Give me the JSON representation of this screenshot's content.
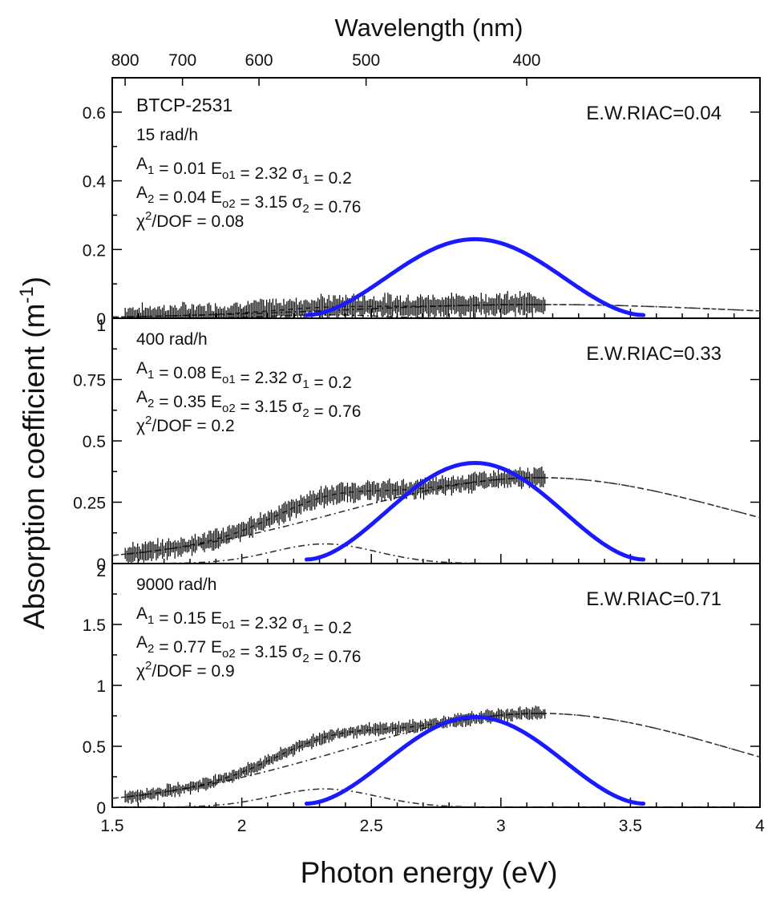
{
  "chart_data": {
    "type": "line",
    "xlabel": "Photon energy (eV)",
    "top_axis_label": "Wavelength (nm)",
    "ylabel": "Absorption coefficient (m-1)",
    "xlim": [
      1.5,
      4
    ],
    "x_ticks": [
      1.5,
      2,
      2.5,
      3,
      3.5,
      4
    ],
    "x_tick_labels": [
      "1.5",
      "2",
      "2.5",
      "3",
      "3.5",
      "4"
    ],
    "top_ticks_nm": [
      800,
      700,
      600,
      500,
      400
    ],
    "top_tick_labels": [
      "800",
      "700",
      "600",
      "500",
      "400"
    ],
    "panels": [
      {
        "sample": "BTCP-2531",
        "dose": "15 rad/h",
        "riac": "E.W.RIAC=0.04",
        "fit_line1": {
          "A_label": "A",
          "A_sub": "1",
          "A_val": " = 0.01  E",
          "E_sub": "o1",
          "E_val": " = 2.32  σ",
          "s_sub": "1",
          "s_val": " = 0.2"
        },
        "fit_line2": {
          "A_label": "A",
          "A_sub": "2",
          "A_val": " = 0.04  E",
          "E_sub": "o2",
          "E_val": " = 3.15  σ",
          "s_sub": "2",
          "s_val": " = 0.76"
        },
        "chi": {
          "sym": "χ",
          "sup": "2",
          "rest": "/DOF = 0.08"
        },
        "ylim": [
          0,
          0.7
        ],
        "y_ticks": [
          0,
          0.2,
          0.4,
          0.6
        ],
        "y_tick_labels": [
          "0",
          "0.2",
          "0.4",
          "0.6"
        ],
        "A1": 0.01,
        "A2": 0.04,
        "E1": 2.32,
        "E2": 3.15,
        "s1": 0.2,
        "s2": 0.76,
        "data_x_range": [
          1.55,
          3.17
        ],
        "data_error": 0.025,
        "spectrum_peak": 0.23
      },
      {
        "sample": "",
        "dose": "400 rad/h",
        "riac": "E.W.RIAC=0.33",
        "fit_line1": {
          "A_label": "A",
          "A_sub": "1",
          "A_val": " = 0.08  E",
          "E_sub": "o1",
          "E_val": " = 2.32  σ",
          "s_sub": "1",
          "s_val": " = 0.2"
        },
        "fit_line2": {
          "A_label": "A",
          "A_sub": "2",
          "A_val": " = 0.35  E",
          "E_sub": "o2",
          "E_val": " = 3.15  σ",
          "s_sub": "2",
          "s_val": " = 0.76"
        },
        "chi": {
          "sym": "χ",
          "sup": "2",
          "rest": "/DOF = 0.2"
        },
        "ylim": [
          0,
          1.0
        ],
        "y_ticks": [
          0,
          0.25,
          0.5,
          0.75,
          1
        ],
        "y_tick_labels": [
          "0",
          "0.25",
          "0.5",
          "0.75",
          "1"
        ],
        "A1": 0.08,
        "A2": 0.35,
        "E1": 2.32,
        "E2": 3.15,
        "s1": 0.2,
        "s2": 0.76,
        "data_x_range": [
          1.55,
          3.17
        ],
        "data_error": 0.03,
        "spectrum_peak": 0.41
      },
      {
        "sample": "",
        "dose": "9000 rad/h",
        "riac": "E.W.RIAC=0.71",
        "fit_line1": {
          "A_label": "A",
          "A_sub": "1",
          "A_val": " = 0.15  E",
          "E_sub": "o1",
          "E_val": " = 2.32  σ",
          "s_sub": "1",
          "s_val": " = 0.2"
        },
        "fit_line2": {
          "A_label": "A",
          "A_sub": "2",
          "A_val": " = 0.77  E",
          "E_sub": "o2",
          "E_val": " = 3.15  σ",
          "s_sub": "2",
          "s_val": " = 0.76"
        },
        "chi": {
          "sym": "χ",
          "sup": "2",
          "rest": "/DOF = 0.9"
        },
        "ylim": [
          0,
          2
        ],
        "y_ticks": [
          0,
          0.5,
          1,
          1.5,
          2
        ],
        "y_tick_labels": [
          "0",
          "0.5",
          "1",
          "1.5",
          "2"
        ],
        "A1": 0.15,
        "A2": 0.77,
        "E1": 2.32,
        "E2": 3.15,
        "s1": 0.2,
        "s2": 0.76,
        "data_x_range": [
          1.55,
          3.17
        ],
        "data_error": 0.04,
        "spectrum_peak": 0.74
      }
    ],
    "spectrum_x_range": [
      2.25,
      3.55
    ],
    "spectrum_peak_x": 2.9,
    "colors": {
      "spectrum": "#1a1aff",
      "data": "#000000",
      "fit": "#333333"
    }
  }
}
